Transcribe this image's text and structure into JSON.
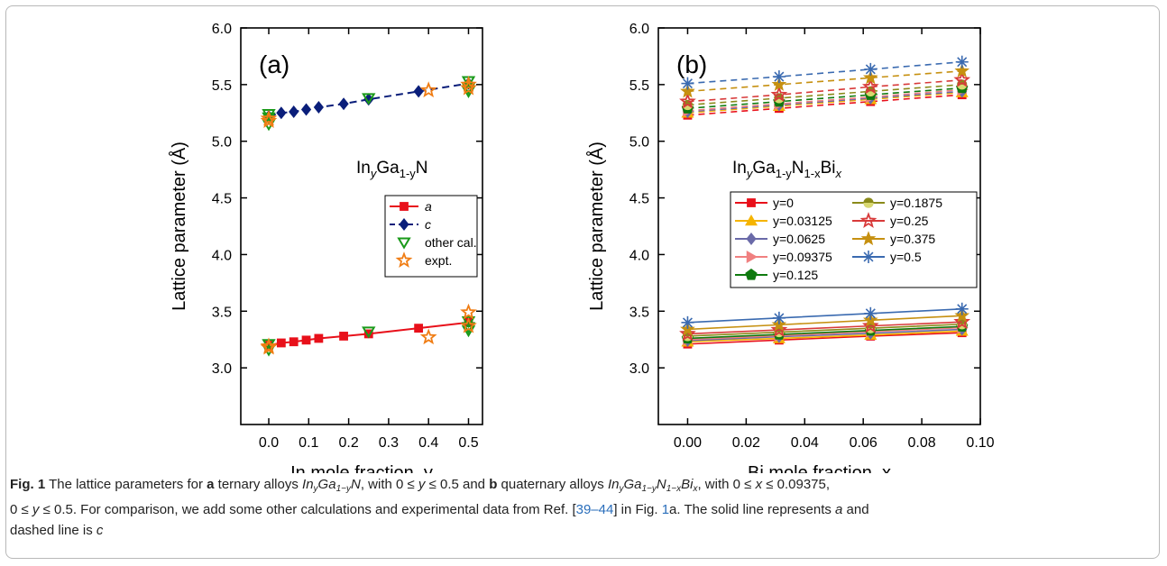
{
  "chart_data": [
    {
      "type": "line",
      "panel_label": "(a)",
      "xlabel": "In mole fraction, y",
      "ylabel": "Lattice parameter (Å)",
      "annotation": {
        "base": "In",
        "sub1": "y",
        "mid": "Ga",
        "sub2": "1-y",
        "tail": "N"
      },
      "xlim": [
        -0.07,
        0.535
      ],
      "ylim": [
        2.5,
        6.0
      ],
      "xticks": [
        0.0,
        0.1,
        0.2,
        0.3,
        0.4,
        0.5
      ],
      "xtick_labels": [
        "0.0",
        "0.1",
        "0.2",
        "0.3",
        "0.4",
        "0.5"
      ],
      "yticks": [
        3.0,
        3.5,
        4.0,
        4.5,
        5.0,
        5.5,
        6.0
      ],
      "ytick_labels": [
        "3.0",
        "3.5",
        "4.0",
        "4.5",
        "5.0",
        "5.5",
        "6.0"
      ],
      "series": [
        {
          "name": "a",
          "style": "solid",
          "marker": "square",
          "color": "#e8101a",
          "x": [
            0,
            0.03125,
            0.0625,
            0.09375,
            0.125,
            0.1875,
            0.25,
            0.375,
            0.5
          ],
          "y": [
            3.2,
            3.22,
            3.23,
            3.245,
            3.26,
            3.28,
            3.3,
            3.35,
            3.4
          ]
        },
        {
          "name": "c",
          "style": "dashed",
          "marker": "diamond",
          "color": "#0a1e7a",
          "x": [
            0,
            0.03125,
            0.0625,
            0.09375,
            0.125,
            0.1875,
            0.25,
            0.375,
            0.5
          ],
          "y": [
            5.22,
            5.25,
            5.26,
            5.28,
            5.3,
            5.33,
            5.37,
            5.44,
            5.51
          ]
        },
        {
          "name": "other cal.",
          "style": "none",
          "marker": "triangle-down-open",
          "color": "#1a9a1a",
          "x": [
            0,
            0,
            0,
            0,
            0,
            0.25,
            0.25,
            0.5,
            0.5,
            0.5,
            0.5,
            0.5,
            0.5
          ],
          "y": [
            5.24,
            5.21,
            5.15,
            3.21,
            3.16,
            5.38,
            3.32,
            5.53,
            5.47,
            5.44,
            3.41,
            3.36,
            3.33
          ]
        },
        {
          "name": "expt.",
          "style": "none",
          "marker": "star-open",
          "color": "#f07d14",
          "x": [
            0,
            0,
            0,
            0,
            0.4,
            0.4,
            0.5,
            0.5,
            0.5,
            0.5
          ],
          "y": [
            5.2,
            5.18,
            3.19,
            3.18,
            5.45,
            3.27,
            5.5,
            5.47,
            3.49,
            3.37
          ]
        }
      ]
    },
    {
      "type": "line",
      "panel_label": "(b)",
      "xlabel": "Bi mole fraction, x",
      "ylabel": "Lattice parameter  (Å)",
      "annotation": {
        "base": "In",
        "sub1": "y",
        "mid": "Ga",
        "sub2": "1-y",
        "tail": "N",
        "sub3": "1-x",
        "tail2": "Bi",
        "sub4": "x"
      },
      "xlim": [
        -0.01,
        0.1
      ],
      "ylim": [
        2.5,
        6.0
      ],
      "xticks": [
        0.0,
        0.02,
        0.04,
        0.06,
        0.08,
        0.1
      ],
      "xtick_labels": [
        "0.00",
        "0.02",
        "0.04",
        "0.06",
        "0.08",
        "0.10"
      ],
      "yticks": [
        3.0,
        3.5,
        4.0,
        4.5,
        5.0,
        5.5,
        6.0
      ],
      "ytick_labels": [
        "3.0",
        "3.5",
        "4.0",
        "4.5",
        "5.0",
        "5.5",
        "6.0"
      ],
      "x": [
        0,
        0.03125,
        0.0625,
        0.09375
      ],
      "series": [
        {
          "name": "y=0",
          "marker": "square",
          "color": "#e8101a",
          "a": [
            3.21,
            3.245,
            3.28,
            3.31
          ],
          "c": [
            5.23,
            5.29,
            5.35,
            5.41
          ]
        },
        {
          "name": "y=0.03125",
          "marker": "triangle-up",
          "color": "#f5b400",
          "a": [
            3.23,
            3.26,
            3.29,
            3.325
          ],
          "c": [
            5.25,
            5.31,
            5.37,
            5.43
          ]
        },
        {
          "name": "y=0.0625",
          "marker": "diamond",
          "color": "#6a6aa8",
          "a": [
            3.24,
            3.275,
            3.305,
            3.34
          ],
          "c": [
            5.26,
            5.32,
            5.38,
            5.44
          ]
        },
        {
          "name": "y=0.09375",
          "marker": "triangle-right",
          "color": "#f08080",
          "a": [
            3.25,
            3.285,
            3.32,
            3.355
          ],
          "c": [
            5.27,
            5.33,
            5.39,
            5.455
          ]
        },
        {
          "name": "y=0.125",
          "marker": "pentagon",
          "color": "#0f7a0f",
          "a": [
            3.26,
            3.295,
            3.33,
            3.365
          ],
          "c": [
            5.29,
            5.35,
            5.41,
            5.47
          ]
        },
        {
          "name": "y=0.1875",
          "marker": "circle-half",
          "color": "#8a8a1a",
          "a": [
            3.28,
            3.315,
            3.35,
            3.385
          ],
          "c": [
            5.32,
            5.38,
            5.44,
            5.5
          ]
        },
        {
          "name": "y=0.25",
          "marker": "star-open",
          "color": "#d83a3a",
          "a": [
            3.3,
            3.335,
            3.37,
            3.405
          ],
          "c": [
            5.35,
            5.41,
            5.48,
            5.54
          ]
        },
        {
          "name": "y=0.375",
          "marker": "star",
          "color": "#c69010",
          "a": [
            3.34,
            3.38,
            3.42,
            3.46
          ],
          "c": [
            5.44,
            5.5,
            5.56,
            5.62
          ]
        },
        {
          "name": "y=0.5",
          "marker": "asterisk",
          "color": "#3a6ab0",
          "a": [
            3.4,
            3.44,
            3.48,
            3.52
          ],
          "c": [
            5.51,
            5.57,
            5.635,
            5.7
          ]
        }
      ]
    }
  ],
  "caption": {
    "fig_label": "Fig. 1",
    "t1": " The lattice parameters for ",
    "bold_a": "a",
    "t2": " ternary alloys ",
    "t3": ", with 0 ≤ ",
    "t4": " ≤ 0.5 and ",
    "bold_b": "b",
    "t5": " quaternary alloys ",
    "t6": ", with 0 ≤ ",
    "t7": " ≤ 0.09375,",
    "line2_a": "0 ≤ ",
    "line2_b": " ≤ 0.5. For comparison, we add some other calculations and experimental data from Ref. [",
    "ref": "39–44",
    "line2_c": "] in Fig. ",
    "fig_ref": "1",
    "line2_d": "a. The solid line represents ",
    "line2_e": " and",
    "line3": "dashed line is ",
    "var_a": "a",
    "var_c": "c",
    "var_x": "x",
    "var_y": "y",
    "f_In": "In",
    "f_Ga": "Ga",
    "f_N": "N",
    "f_Bi": "Bi",
    "s_y": "y",
    "s_1my": "1−y",
    "s_1mx": "1−x",
    "s_x": "x"
  }
}
